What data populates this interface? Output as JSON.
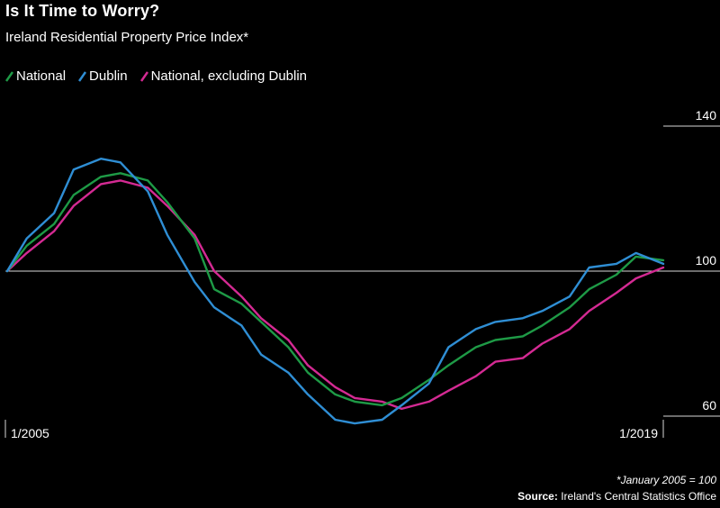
{
  "title": "Is It Time to Worry?",
  "subtitle": "Ireland Residential Property Price Index*",
  "footnote": "*January 2005 = 100",
  "source": {
    "label": "Source:",
    "text": "Ireland's Central Statistics Office"
  },
  "chart_data": {
    "type": "line",
    "x_tick_labels": [
      "1/2005",
      "1/2019"
    ],
    "y_ticks": [
      140,
      100,
      60
    ],
    "reference_line": 100,
    "grid": false,
    "legend_placement": "top-left",
    "series": [
      {
        "name": "National",
        "color": "#1e9a46",
        "x": [
          "2005-01",
          "2005-06",
          "2006-01",
          "2006-06",
          "2007-01",
          "2007-06",
          "2008-01",
          "2008-06",
          "2009-01",
          "2009-06",
          "2010-01",
          "2010-06",
          "2011-01",
          "2011-06",
          "2012-01",
          "2012-06",
          "2013-01",
          "2013-06",
          "2014-01",
          "2014-06",
          "2015-01",
          "2015-06",
          "2016-01",
          "2016-06",
          "2017-01",
          "2017-06",
          "2018-01",
          "2018-06",
          "2019-01"
        ],
        "values": [
          100,
          107,
          113,
          121,
          126,
          127,
          125,
          119,
          109,
          95,
          91,
          86,
          79,
          72,
          66,
          64,
          63,
          65,
          70,
          74,
          79,
          81,
          82,
          85,
          90,
          95,
          99,
          104,
          103
        ]
      },
      {
        "name": "Dublin",
        "color": "#2f8ed4",
        "x": [
          "2005-01",
          "2005-06",
          "2006-01",
          "2006-06",
          "2007-01",
          "2007-06",
          "2008-01",
          "2008-06",
          "2009-01",
          "2009-06",
          "2010-01",
          "2010-06",
          "2011-01",
          "2011-06",
          "2012-01",
          "2012-06",
          "2013-01",
          "2013-06",
          "2014-01",
          "2014-06",
          "2015-01",
          "2015-06",
          "2016-01",
          "2016-06",
          "2017-01",
          "2017-06",
          "2018-01",
          "2018-06",
          "2019-01"
        ],
        "values": [
          100,
          109,
          116,
          128,
          131,
          130,
          122,
          110,
          97,
          90,
          85,
          77,
          72,
          66,
          59,
          58,
          59,
          63,
          69,
          79,
          84,
          86,
          87,
          89,
          93,
          101,
          102,
          105,
          102
        ]
      },
      {
        "name": "National, excluding Dublin",
        "color": "#d42a93",
        "x": [
          "2005-01",
          "2005-06",
          "2006-01",
          "2006-06",
          "2007-01",
          "2007-06",
          "2008-01",
          "2008-06",
          "2009-01",
          "2009-06",
          "2010-01",
          "2010-06",
          "2011-01",
          "2011-06",
          "2012-01",
          "2012-06",
          "2013-01",
          "2013-06",
          "2014-01",
          "2014-06",
          "2015-01",
          "2015-06",
          "2016-01",
          "2016-06",
          "2017-01",
          "2017-06",
          "2018-01",
          "2018-06",
          "2019-01"
        ],
        "values": [
          100,
          105,
          111,
          118,
          124,
          125,
          123,
          118,
          110,
          100,
          93,
          87,
          81,
          74,
          68,
          65,
          64,
          62,
          64,
          67,
          71,
          75,
          76,
          80,
          84,
          89,
          94,
          98,
          101
        ]
      }
    ]
  }
}
